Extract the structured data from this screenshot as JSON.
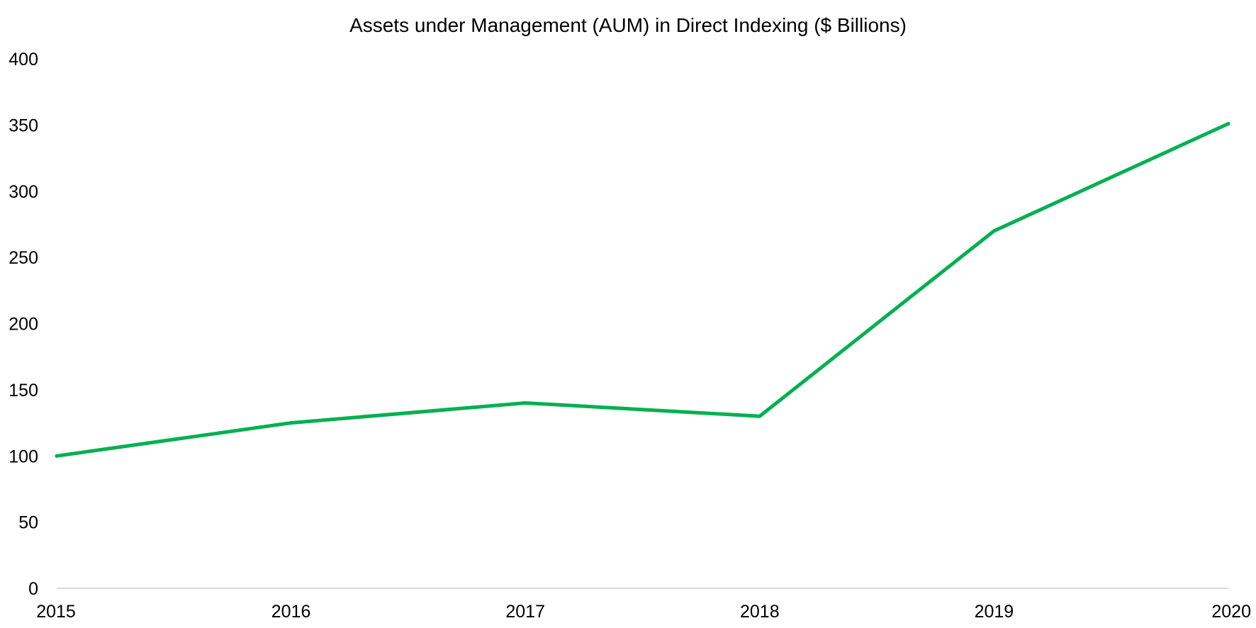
{
  "chart_data": {
    "type": "line",
    "title": "Assets under Management (AUM) in Direct Indexing ($ Billions)",
    "xlabel": "",
    "ylabel": "",
    "x": [
      "2015",
      "2016",
      "2017",
      "2018",
      "2019",
      "2020"
    ],
    "series": [
      {
        "values": [
          100,
          125,
          140,
          130,
          270,
          351
        ],
        "color": "#00B050"
      }
    ],
    "ylim": [
      0,
      400
    ],
    "yticks": [
      "0",
      "50",
      "100",
      "150",
      "200",
      "250",
      "300",
      "350",
      "400"
    ],
    "grid": false,
    "legend": "none",
    "axis_color": "#D9D9D9"
  }
}
